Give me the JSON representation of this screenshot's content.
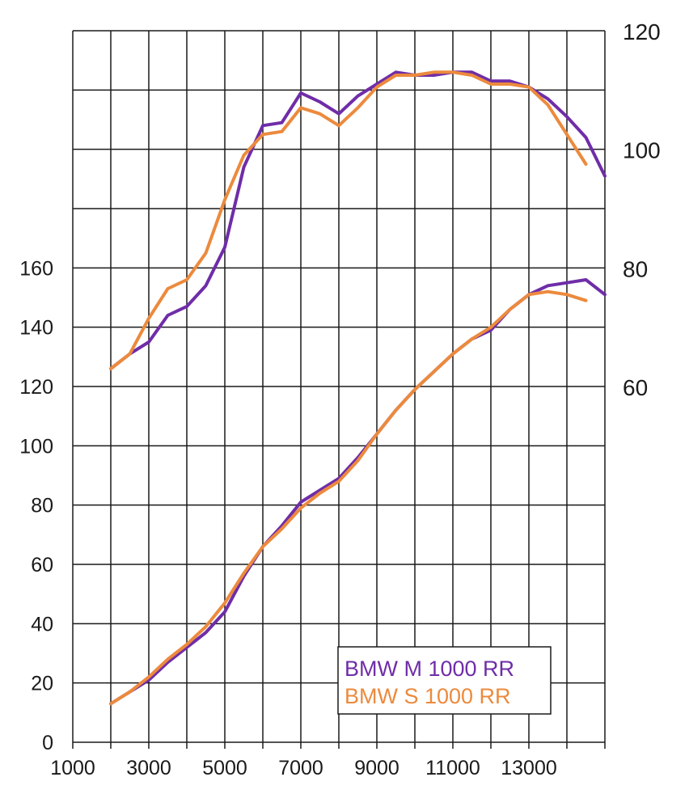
{
  "chart_data": {
    "type": "line",
    "x_axis": {
      "min": 1000,
      "max": 15000,
      "grid_step": 1000,
      "ticks": [
        "1000",
        "3000",
        "5000",
        "7000",
        "9000",
        "11000",
        "13000"
      ],
      "tick_values": [
        1000,
        3000,
        5000,
        7000,
        9000,
        11000,
        13000
      ]
    },
    "y_left": {
      "min": 0,
      "max": 240,
      "ticks": [
        "0",
        "20",
        "40",
        "60",
        "80",
        "100",
        "120",
        "140",
        "160"
      ],
      "tick_values": [
        0,
        20,
        40,
        60,
        80,
        100,
        120,
        140,
        160
      ]
    },
    "y_right": {
      "min": 0,
      "max": 120,
      "ticks": [
        "60",
        "80",
        "100",
        "120"
      ],
      "tick_values": [
        60,
        80,
        100,
        120
      ]
    },
    "grid": true,
    "legend_position": "bottom-right",
    "series": [
      {
        "name": "BMW M 1000 RR",
        "color": "#6f2da8",
        "axis": "left",
        "x": [
          2000,
          2500,
          3000,
          3500,
          4000,
          4500,
          5000,
          5500,
          6000,
          6500,
          7000,
          7500,
          8000,
          8500,
          9000,
          9500,
          10000,
          10500,
          11000,
          11500,
          12000,
          12500,
          13000,
          13500,
          14000,
          14500,
          15000
        ],
        "values": [
          13,
          17,
          21,
          27,
          32,
          37,
          44,
          56,
          66,
          73,
          81,
          85,
          89,
          96,
          104,
          112,
          119,
          125,
          131,
          136,
          139,
          146,
          151,
          154,
          155,
          156,
          151
        ]
      },
      {
        "name": "BMW S 1000 RR",
        "color": "#ec8a3d",
        "axis": "left",
        "x": [
          2000,
          2500,
          3000,
          3500,
          4000,
          4500,
          5000,
          5500,
          6000,
          6500,
          7000,
          7500,
          8000,
          8500,
          9000,
          9500,
          10000,
          10500,
          11000,
          11500,
          12000,
          12500,
          13000,
          13500,
          14000,
          14500
        ],
        "values": [
          13,
          17,
          22,
          28,
          33,
          39,
          47,
          57,
          66,
          72,
          79,
          84,
          88,
          95,
          104,
          112,
          119,
          125,
          131,
          136,
          140,
          146,
          151,
          152,
          151,
          149
        ]
      },
      {
        "name": "BMW M 1000 RR",
        "color": "#6f2da8",
        "axis": "right",
        "x": [
          2000,
          2500,
          3000,
          3500,
          4000,
          4500,
          5000,
          5500,
          6000,
          6500,
          7000,
          7500,
          8000,
          8500,
          9000,
          9500,
          10000,
          10500,
          11000,
          11500,
          12000,
          12500,
          13000,
          13500,
          14000,
          14500,
          15000
        ],
        "values": [
          63,
          65.5,
          67.5,
          72,
          73.5,
          77,
          83.5,
          97,
          104,
          104.5,
          109.5,
          108,
          106,
          109,
          111,
          113,
          112.5,
          112.5,
          113,
          113,
          111.5,
          111.5,
          110.5,
          108.5,
          105.5,
          102,
          95.5
        ]
      },
      {
        "name": "BMW S 1000 RR",
        "color": "#ec8a3d",
        "axis": "right",
        "x": [
          2000,
          2500,
          3000,
          3500,
          4000,
          4500,
          5000,
          5500,
          6000,
          6500,
          7000,
          7500,
          8000,
          8500,
          9000,
          9500,
          10000,
          10500,
          11000,
          11500,
          12000,
          12500,
          13000,
          13500,
          14000,
          14500
        ],
        "values": [
          63,
          65.5,
          71.5,
          76.5,
          78,
          82.5,
          91.5,
          99,
          102.5,
          103,
          107,
          106,
          104,
          107,
          110.5,
          112.5,
          112.5,
          113,
          113,
          112.5,
          111,
          111,
          110.5,
          107.5,
          102.5,
          97.5
        ]
      }
    ]
  },
  "legend": {
    "items": [
      {
        "label": "BMW M 1000 RR",
        "color": "#6f2da8"
      },
      {
        "label": "BMW S 1000 RR",
        "color": "#ec8a3d"
      }
    ]
  }
}
